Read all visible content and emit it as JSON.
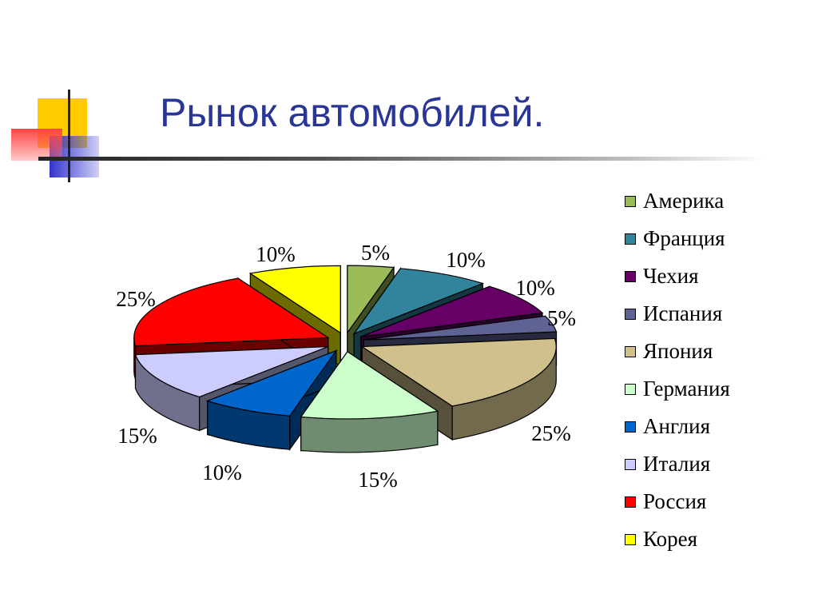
{
  "title": "Рынок автомобилей.",
  "chart_data": {
    "type": "pie",
    "title": "",
    "legend_position": "right",
    "series": [
      {
        "name": "Америка",
        "value": 5,
        "label": "5%",
        "color": "#9bbb59"
      },
      {
        "name": "Франция",
        "value": 10,
        "label": "10%",
        "color": "#31849b"
      },
      {
        "name": "Чехия",
        "value": 10,
        "label": "10%",
        "color": "#660066"
      },
      {
        "name": "Испания",
        "value": 5,
        "label": "5%",
        "color": "#5e6394"
      },
      {
        "name": "Япония",
        "value": 25,
        "label": "25%",
        "color": "#cfc08c"
      },
      {
        "name": "Германия",
        "value": 15,
        "label": "15%",
        "color": "#ccffcc"
      },
      {
        "name": "Англия",
        "value": 10,
        "label": "10%",
        "color": "#0066cc"
      },
      {
        "name": "Италия",
        "value": 15,
        "label": "15%",
        "color": "#ccccff"
      },
      {
        "name": "Россия",
        "value": 25,
        "label": "25%",
        "color": "#ff0000"
      },
      {
        "name": "Корея",
        "value": 10,
        "label": "10%",
        "color": "#ffff00"
      }
    ]
  }
}
